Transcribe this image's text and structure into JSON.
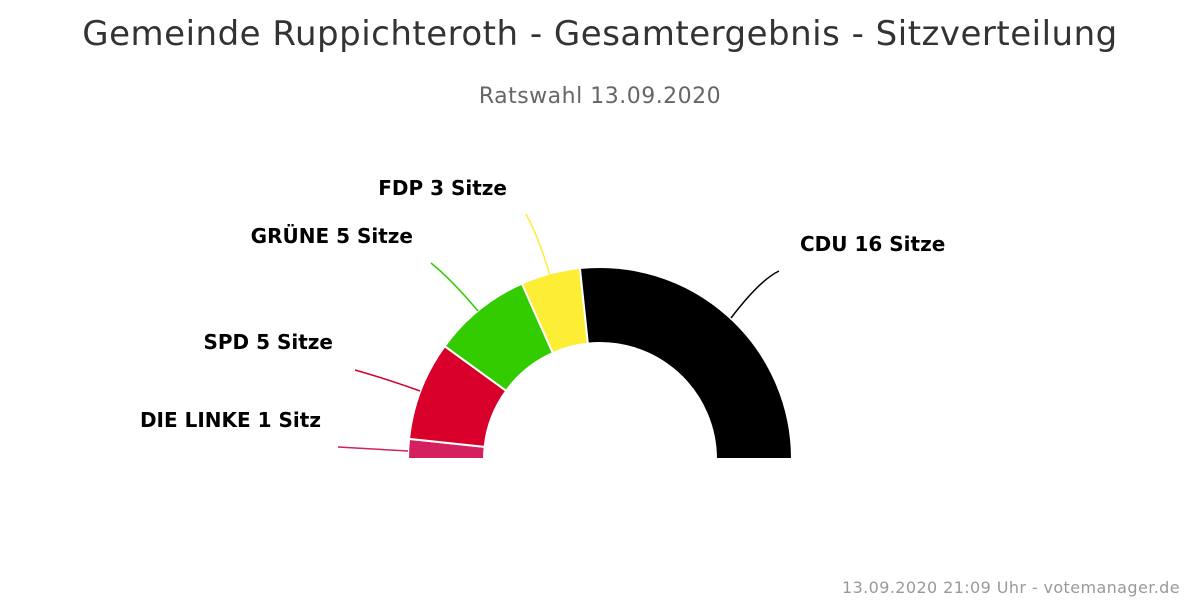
{
  "chart_data": {
    "type": "pie",
    "variant": "semicircle",
    "title": "Gemeinde Ruppichteroth - Gesamtergebnis - Sitzverteilung",
    "subtitle": "Ratswahl 13.09.2020",
    "series": [
      {
        "name": "DIE LINKE",
        "value": 1,
        "label": "DIE LINKE 1 Sitz",
        "color": "#d4205f"
      },
      {
        "name": "SPD",
        "value": 5,
        "label": "SPD 5 Sitze",
        "color": "#d8002a"
      },
      {
        "name": "GRÜNE",
        "value": 5,
        "label": "GRÜNE 5 Sitze",
        "color": "#33cc00"
      },
      {
        "name": "FDP",
        "value": 3,
        "label": "FDP 3 Sitze",
        "color": "#fcee34"
      },
      {
        "name": "CDU",
        "value": 16,
        "label": "CDU 16 Sitze",
        "color": "#000000"
      }
    ],
    "credit": "13.09.2020 21:09 Uhr - votemanager.de"
  }
}
